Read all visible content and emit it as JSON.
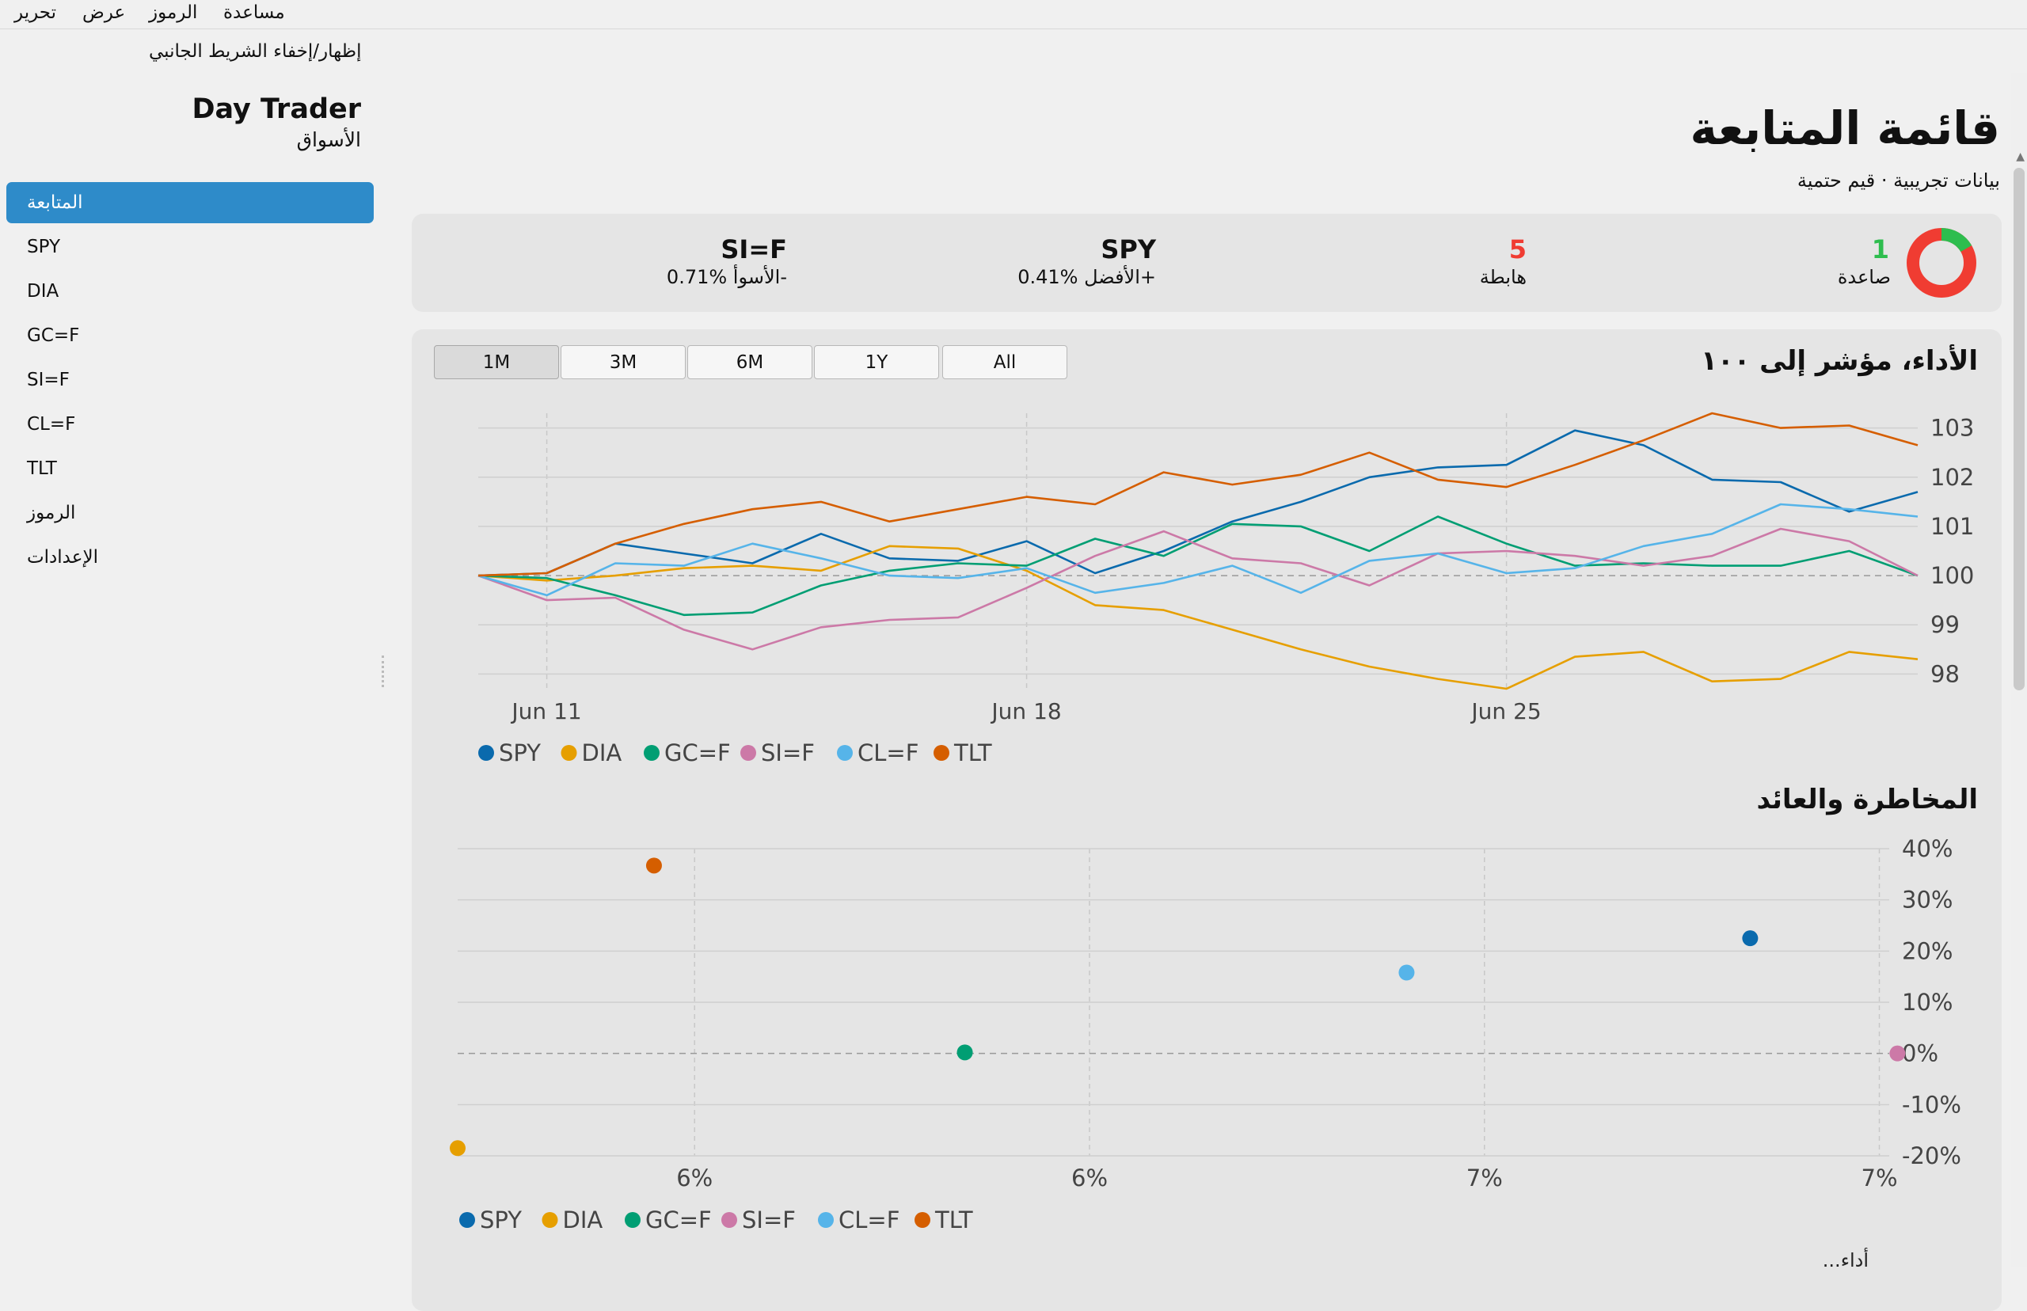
{
  "menu": [
    "تحرير",
    "عرض",
    "الرموز",
    "مساعدة"
  ],
  "sidebar": {
    "toggle_label": "إظهار/إخفاء الشريط الجانبي",
    "app_title": "Day Trader",
    "app_subtitle": "الأسواق",
    "items": [
      {
        "label": "المتابعة",
        "active": true
      },
      {
        "label": "SPY"
      },
      {
        "label": "DIA"
      },
      {
        "label": "GC=F"
      },
      {
        "label": "SI=F"
      },
      {
        "label": "CL=F"
      },
      {
        "label": "TLT"
      },
      {
        "label": "الرموز"
      },
      {
        "label": "الإعدادات"
      }
    ]
  },
  "main": {
    "title": "قائمة المتابعة",
    "subtitle": "بيانات تجريبية · قيم حتمية",
    "summary": {
      "up_count": "1",
      "up_label": "صاعدة",
      "down_count": "5",
      "down_label": "هابطة",
      "best_symbol": "SPY",
      "best_text": "الأفضل %0.41+",
      "worst_symbol": "SI=F",
      "worst_text": "الأسوأ %0.71-",
      "up_color": "#2ebd4e",
      "down_color": "#f03c32"
    },
    "performance_title": "الأداء، مؤشر إلى ١٠٠",
    "ranges": [
      "1M",
      "3M",
      "6M",
      "1Y",
      "All"
    ],
    "active_range": "1M",
    "risk_title": "المخاطرة والعائد",
    "bottom_text": "...أداء"
  },
  "chart_data": [
    {
      "type": "line",
      "title": "الأداء، مؤشر إلى ١٠٠",
      "x_ticks": [
        "Jun 11",
        "Jun 18",
        "Jun 25"
      ],
      "y_ticks": [
        "98",
        "99",
        "100",
        "101",
        "102",
        "103"
      ],
      "ylim": [
        97.7,
        103.3
      ],
      "baseline": 100,
      "grid": true,
      "legend": "bottom-left",
      "series": [
        {
          "name": "SPY",
          "color": "#0a6aad",
          "values": [
            100,
            100.05,
            100.65,
            100.45,
            100.25,
            100.85,
            100.35,
            100.3,
            100.7,
            100.05,
            100.5,
            101.1,
            101.5,
            102.0,
            102.2,
            102.25,
            102.95,
            102.65,
            101.95,
            101.9,
            101.3,
            101.7
          ]
        },
        {
          "name": "DIA",
          "color": "#e69f00",
          "values": [
            100,
            99.9,
            100.0,
            100.15,
            100.2,
            100.1,
            100.6,
            100.55,
            100.1,
            99.4,
            99.3,
            98.9,
            98.5,
            98.15,
            97.9,
            97.7,
            98.35,
            98.45,
            97.85,
            97.9,
            98.45,
            98.3
          ]
        },
        {
          "name": "GC=F",
          "color": "#009e73",
          "values": [
            100,
            99.95,
            99.6,
            99.2,
            99.25,
            99.8,
            100.1,
            100.25,
            100.2,
            100.75,
            100.4,
            101.05,
            101.0,
            100.5,
            101.2,
            100.65,
            100.2,
            100.25,
            100.2,
            100.2,
            100.5,
            100
          ]
        },
        {
          "name": "SI=F",
          "color": "#cc79a7",
          "values": [
            100,
            99.5,
            99.55,
            98.9,
            98.5,
            98.95,
            99.1,
            99.15,
            99.75,
            100.4,
            100.9,
            100.35,
            100.25,
            99.8,
            100.45,
            100.5,
            100.4,
            100.2,
            100.4,
            100.95,
            100.7,
            100
          ]
        },
        {
          "name": "CL=F",
          "color": "#56b4e9",
          "values": [
            100,
            99.6,
            100.25,
            100.2,
            100.65,
            100.35,
            100.0,
            99.95,
            100.15,
            99.65,
            99.85,
            100.2,
            99.65,
            100.3,
            100.45,
            100.05,
            100.15,
            100.6,
            100.85,
            101.45,
            101.35,
            101.2
          ]
        },
        {
          "name": "TLT",
          "color": "#d55e00",
          "values": [
            100,
            100.05,
            100.65,
            101.05,
            101.35,
            101.5,
            101.1,
            101.35,
            101.6,
            101.45,
            102.1,
            101.85,
            102.05,
            102.5,
            101.95,
            101.8,
            102.25,
            102.75,
            103.3,
            103.0,
            103.05,
            102.65
          ]
        }
      ]
    },
    {
      "type": "scatter",
      "title": "المخاطرة والعائد",
      "x_ticks": [
        "6%",
        "6%",
        "7%",
        "7%"
      ],
      "y_ticks": [
        "-20%",
        "-10%",
        "0%",
        "10%",
        "20%",
        "30%",
        "40%"
      ],
      "xlim": [
        5.3,
        7.05
      ],
      "ylim": [
        -20,
        40
      ],
      "baseline": 0,
      "grid": true,
      "legend": "bottom-left",
      "points": [
        {
          "name": "SPY",
          "color": "#0a6aad",
          "x": 6.88,
          "y": 22.5
        },
        {
          "name": "DIA",
          "color": "#e69f00",
          "x": 5.3,
          "y": -18.5
        },
        {
          "name": "GC=F",
          "color": "#009e73",
          "x": 5.92,
          "y": 0.2
        },
        {
          "name": "SI=F",
          "color": "#cc79a7",
          "x": 7.06,
          "y": 0
        },
        {
          "name": "CL=F",
          "color": "#56b4e9",
          "x": 6.46,
          "y": 15.8
        },
        {
          "name": "TLT",
          "color": "#d55e00",
          "x": 5.54,
          "y": 36.7
        }
      ]
    }
  ]
}
